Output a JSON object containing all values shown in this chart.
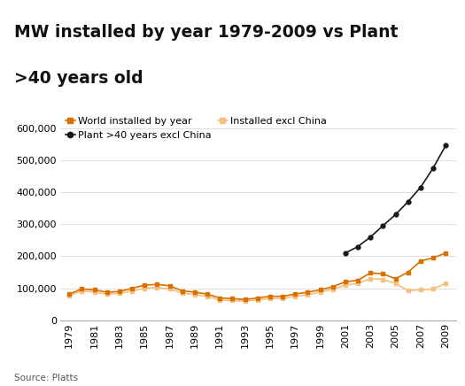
{
  "title_line1": "MW installed by year 1979-2009 vs Plant",
  "title_line2": ">40 years old",
  "source": "Source: Platts",
  "years": [
    1979,
    1980,
    1981,
    1982,
    1983,
    1984,
    1985,
    1986,
    1987,
    1988,
    1989,
    1990,
    1991,
    1992,
    1993,
    1994,
    1995,
    1996,
    1997,
    1998,
    1999,
    2000,
    2001,
    2002,
    2003,
    2004,
    2005,
    2006,
    2007,
    2008,
    2009
  ],
  "world_installed": [
    82000,
    98000,
    95000,
    88000,
    90000,
    100000,
    110000,
    112000,
    108000,
    92000,
    88000,
    82000,
    70000,
    68000,
    65000,
    70000,
    75000,
    75000,
    82000,
    88000,
    95000,
    105000,
    120000,
    125000,
    148000,
    145000,
    130000,
    150000,
    185000,
    195000,
    210000
  ],
  "installed_excl_china": [
    78000,
    92000,
    88000,
    82000,
    84000,
    92000,
    100000,
    103000,
    98000,
    85000,
    80000,
    75000,
    63000,
    62000,
    60000,
    64000,
    68000,
    68000,
    75000,
    80000,
    88000,
    97000,
    110000,
    115000,
    130000,
    128000,
    115000,
    93000,
    95000,
    98000,
    115000
  ],
  "plant_gt40": [
    null,
    null,
    null,
    null,
    null,
    null,
    null,
    null,
    null,
    null,
    null,
    null,
    null,
    null,
    null,
    null,
    null,
    null,
    null,
    null,
    null,
    null,
    210000,
    230000,
    260000,
    295000,
    330000,
    370000,
    415000,
    475000,
    545000
  ],
  "world_color": "#d97000",
  "excl_china_color": "#f5c080",
  "plant_color": "#1a1a1a",
  "ylim": [
    0,
    650000
  ],
  "yticks": [
    0,
    100000,
    200000,
    300000,
    400000,
    500000,
    600000
  ],
  "header_color": "#e8e8e8",
  "plot_background": "#ffffff",
  "fig_background": "#ffffff",
  "title_fontsize": 13.5,
  "legend_fontsize": 8,
  "tick_fontsize": 8
}
